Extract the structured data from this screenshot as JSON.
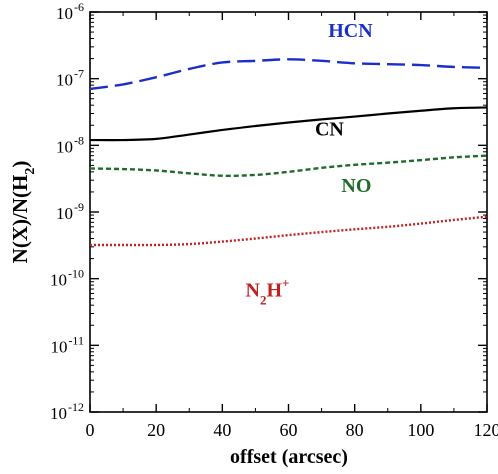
{
  "chart_data": {
    "type": "line",
    "title": "",
    "xlabel": "offset (arcsec)",
    "ylabel_parts": {
      "main": "N(X)/N(H",
      "sub": "2",
      "close": ")"
    },
    "x_ticks": [
      0,
      20,
      40,
      60,
      80,
      100,
      120
    ],
    "xlim": [
      0,
      120
    ],
    "ylim": [
      1e-12,
      1e-06
    ],
    "y_scale": "log",
    "y_ticks": [
      {
        "value": 1e-12,
        "base": "10",
        "exp": "-12"
      },
      {
        "value": 1e-11,
        "base": "10",
        "exp": "-11"
      },
      {
        "value": 1e-10,
        "base": "10",
        "exp": "-10"
      },
      {
        "value": 1e-09,
        "base": "10",
        "exp": "-9"
      },
      {
        "value": 1e-08,
        "base": "10",
        "exp": "-8"
      },
      {
        "value": 1e-07,
        "base": "10",
        "exp": "-7"
      },
      {
        "value": 1e-06,
        "base": "10",
        "exp": "-6"
      }
    ],
    "grid": false,
    "series": [
      {
        "name": "HCN",
        "color": "#1a2fc8",
        "dash": "long-dash",
        "label_at": [
          72,
          4.2e-07
        ],
        "x": [
          0,
          10,
          20,
          30,
          40,
          50,
          60,
          70,
          80,
          90,
          100,
          110,
          120
        ],
        "y": [
          7e-08,
          8.2e-08,
          1.05e-07,
          1.4e-07,
          1.75e-07,
          1.85e-07,
          1.95e-07,
          1.85e-07,
          1.7e-07,
          1.65e-07,
          1.6e-07,
          1.5e-07,
          1.45e-07
        ]
      },
      {
        "name": "CN",
        "color": "#000000",
        "dash": "solid",
        "label_at": [
          68,
          1.4e-08
        ],
        "x": [
          0,
          10,
          20,
          30,
          40,
          50,
          60,
          70,
          80,
          90,
          100,
          110,
          120
        ],
        "y": [
          1.2e-08,
          1.2e-08,
          1.25e-08,
          1.45e-08,
          1.7e-08,
          1.95e-08,
          2.2e-08,
          2.45e-08,
          2.7e-08,
          3e-08,
          3.3e-08,
          3.6e-08,
          3.7e-08
        ]
      },
      {
        "name": "NO",
        "color": "#1f6b2a",
        "dash": "short-dash",
        "label_at": [
          76,
          2e-09
        ],
        "x": [
          0,
          10,
          20,
          30,
          40,
          50,
          60,
          70,
          80,
          90,
          100,
          110,
          120
        ],
        "y": [
          4.5e-09,
          4.4e-09,
          4.2e-09,
          3.8e-09,
          3.5e-09,
          3.6e-09,
          4e-09,
          4.6e-09,
          5.1e-09,
          5.5e-09,
          6e-09,
          6.6e-09,
          7e-09
        ]
      },
      {
        "name_parts": {
          "main": "N",
          "sub": "2",
          "rest": "H",
          "sup": "+"
        },
        "color": "#c0201e",
        "dash": "dotted",
        "label_at": [
          47,
          5.4e-11
        ],
        "x": [
          0,
          10,
          20,
          30,
          40,
          50,
          60,
          70,
          80,
          90,
          100,
          110,
          120
        ],
        "y": [
          3.2e-10,
          3.2e-10,
          3.2e-10,
          3.3e-10,
          3.6e-10,
          4e-10,
          4.5e-10,
          5e-10,
          5.5e-10,
          6e-10,
          6.7e-10,
          7.6e-10,
          8.5e-10
        ]
      }
    ]
  }
}
